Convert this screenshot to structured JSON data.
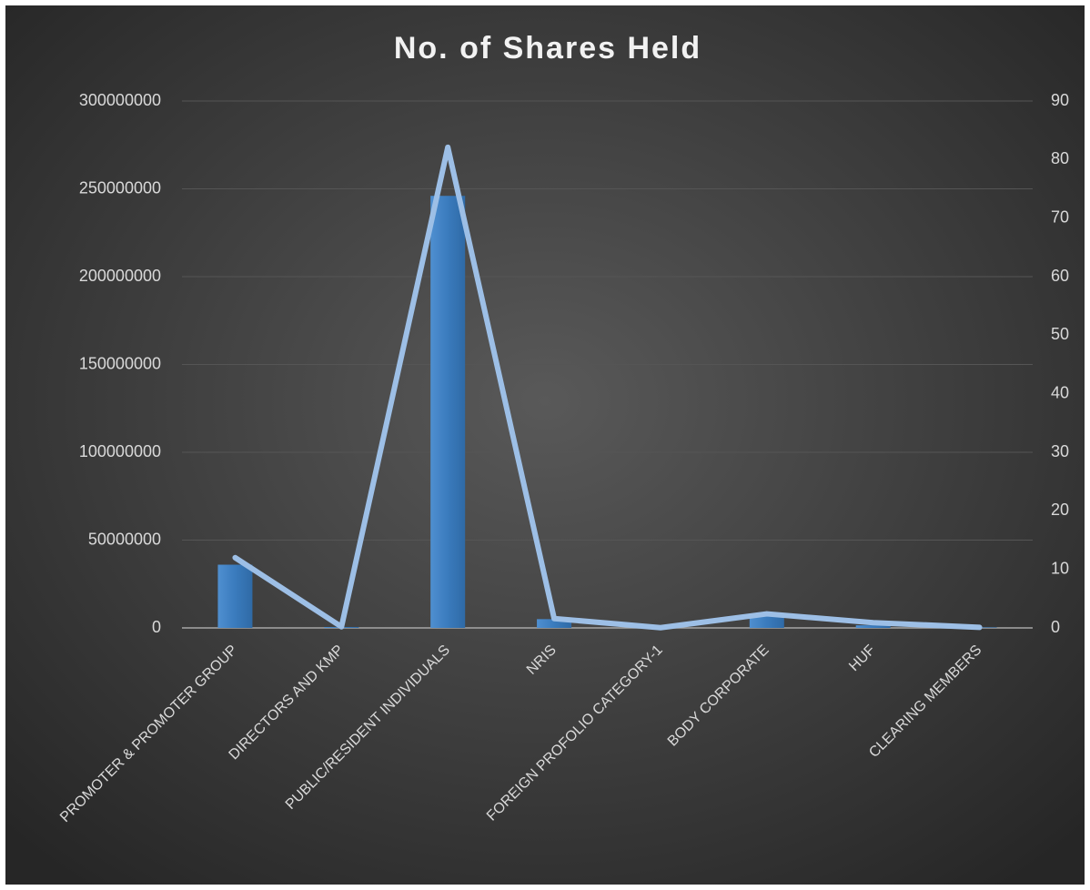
{
  "chart_data": {
    "type": "combo",
    "title": "No. of Shares Held",
    "categories": [
      "PROMOTER & PROMOTER GROUP",
      "DIRECTORS AND KMP",
      "PUBLIC/RESIDENT INDIVIDUALS",
      "NRIS",
      "FOREIGN PROFOLIO CATEGORY-1",
      "BODY CORPORATE",
      "HUF",
      "CLEARING MEMBERS"
    ],
    "series": [
      {
        "type": "bar",
        "color": "#3d7ebf",
        "values": [
          36000000,
          500000,
          246000000,
          5000000,
          100000,
          7000000,
          1500000,
          300000
        ]
      },
      {
        "type": "line",
        "axis": "y2",
        "color": "#9dbfe6",
        "values": [
          12,
          0.2,
          82.1,
          1.6,
          0.04,
          2.4,
          0.9,
          0.1
        ]
      }
    ],
    "ylim": [
      0,
      300000000
    ],
    "yticks": [
      0,
      50000000,
      100000000,
      150000000,
      200000000,
      250000000,
      300000000
    ],
    "y2lim": [
      0,
      90
    ],
    "y2ticks": [
      0,
      10,
      20,
      30,
      40,
      50,
      60,
      70,
      80,
      90
    ],
    "grid": true
  }
}
